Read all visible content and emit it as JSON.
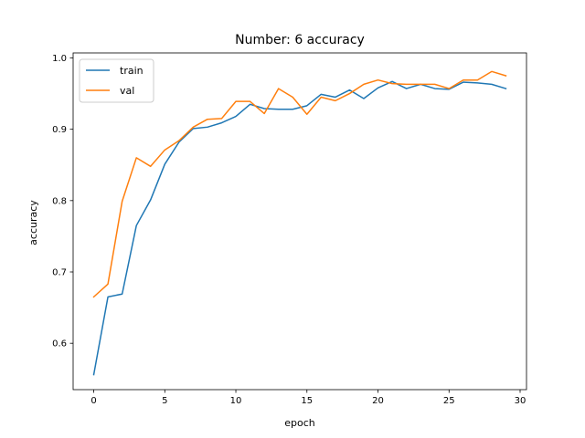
{
  "chart_data": {
    "type": "line",
    "title": "Number: 6 accuracy",
    "xlabel": "epoch",
    "ylabel": "accuracy",
    "xlim": [
      -1.45,
      30.45
    ],
    "ylim": [
      0.535,
      1.007
    ],
    "xticks": [
      0,
      5,
      10,
      15,
      20,
      25,
      30
    ],
    "yticks": [
      0.6,
      0.7,
      0.8,
      0.9,
      1.0
    ],
    "ytick_labels": [
      "0.6",
      "0.7",
      "0.8",
      "0.9",
      "1.0"
    ],
    "grid": false,
    "legend_position": "upper-left",
    "x": [
      0,
      1,
      2,
      3,
      4,
      5,
      6,
      7,
      8,
      9,
      10,
      11,
      12,
      13,
      14,
      15,
      16,
      17,
      18,
      19,
      20,
      21,
      22,
      23,
      24,
      25,
      26,
      27,
      28,
      29
    ],
    "series": [
      {
        "name": "train",
        "color": "#1f77b4",
        "values": [
          0.556,
          0.665,
          0.669,
          0.765,
          0.801,
          0.851,
          0.882,
          0.901,
          0.903,
          0.909,
          0.918,
          0.935,
          0.929,
          0.928,
          0.928,
          0.933,
          0.949,
          0.945,
          0.955,
          0.943,
          0.958,
          0.967,
          0.957,
          0.963,
          0.957,
          0.956,
          0.966,
          0.965,
          0.963,
          0.957
        ]
      },
      {
        "name": "val",
        "color": "#ff7f0e",
        "values": [
          0.665,
          0.683,
          0.799,
          0.86,
          0.848,
          0.871,
          0.884,
          0.903,
          0.914,
          0.915,
          0.939,
          0.939,
          0.922,
          0.957,
          0.945,
          0.921,
          0.945,
          0.94,
          0.95,
          0.963,
          0.969,
          0.964,
          0.963,
          0.963,
          0.963,
          0.957,
          0.969,
          0.969,
          0.981,
          0.975
        ]
      }
    ]
  }
}
